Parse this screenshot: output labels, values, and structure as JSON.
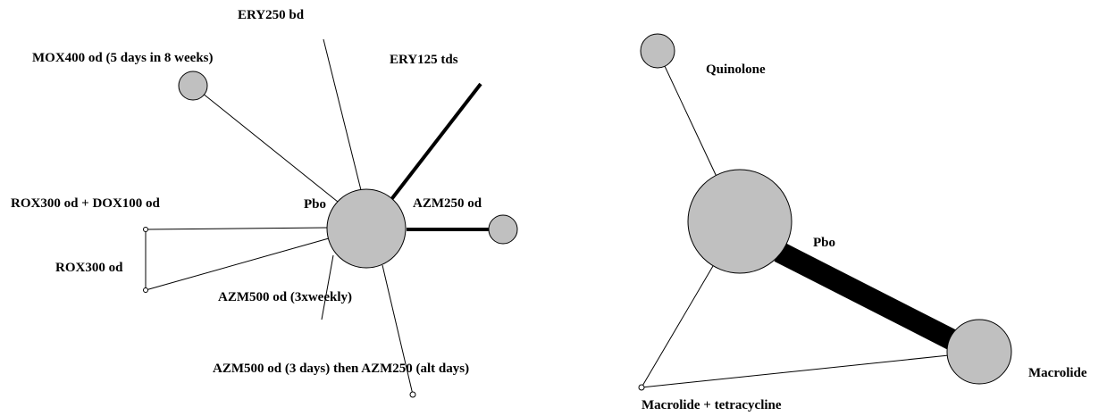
{
  "left_network": {
    "center_label": "Pbo",
    "treatments": [
      {
        "id": "ery250",
        "label": "ERY250 bd"
      },
      {
        "id": "ery125",
        "label": "ERY125 tds"
      },
      {
        "id": "mox400",
        "label": "MOX400 od (5 days in 8 weeks)"
      },
      {
        "id": "azm250",
        "label": "AZM250 od"
      },
      {
        "id": "roxdox",
        "label": "ROX300 od + DOX100 od"
      },
      {
        "id": "rox300",
        "label": "ROX300 od"
      },
      {
        "id": "azm500w",
        "label": "AZM500 od (3xweekly)"
      },
      {
        "id": "azm500alt",
        "label": "AZM500 od (3 days) then AZM250 (alt days)"
      }
    ]
  },
  "right_network": {
    "center_label": "Pbo",
    "classes": [
      {
        "id": "quinolone",
        "label": "Quinolone"
      },
      {
        "id": "macrolide",
        "label": "Macrolide"
      },
      {
        "id": "macrotet",
        "label": "Macrolide + tetracycline"
      }
    ]
  },
  "colors": {
    "node_fill": "#c0c0c0",
    "edge": "#000000",
    "background": "#ffffff"
  }
}
